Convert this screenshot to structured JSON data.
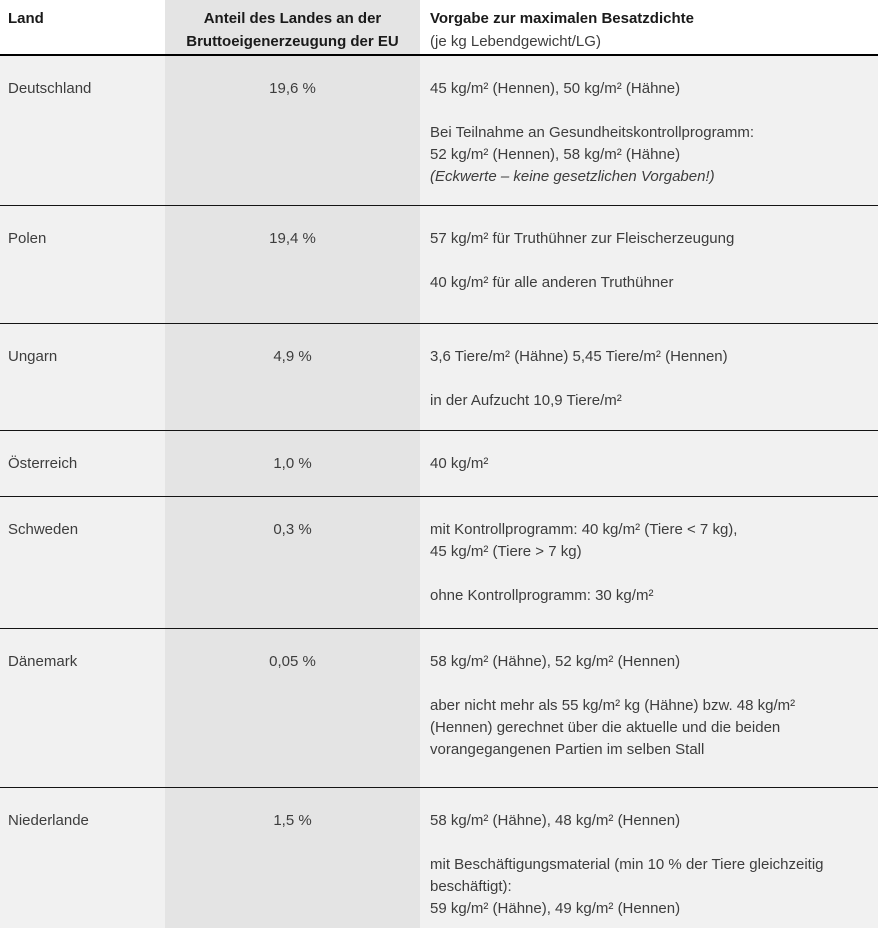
{
  "header": {
    "col1": "Land",
    "col2_line1": "Anteil des Landes an der",
    "col2_line2": "Bruttoeigenerzeugung der EU",
    "col3_title": "Vorgabe zur maximalen Besatzdichte",
    "col3_sub": "(je kg Lebendgewicht/LG)"
  },
  "rows": [
    {
      "country": "Deutschland",
      "share": "19,6 %",
      "lines": [
        "45 kg/m² (Hennen), 50 kg/m² (Hähne)",
        "",
        "Bei Teilnahme an Gesundheitskontrollprogramm:",
        "52 kg/m² (Hennen), 58 kg/m² (Hähne)",
        "(Eckwerte – keine gesetzlichen Vorgaben!)"
      ],
      "italic_lines": [
        4
      ]
    },
    {
      "country": "Polen",
      "share": "19,4 %",
      "lines": [
        "57 kg/m² für Truthühner zur Fleischerzeugung",
        "",
        "40 kg/m² für alle anderen Truthühner"
      ]
    },
    {
      "country": "Ungarn",
      "share": "4,9 %",
      "lines": [
        "3,6 Tiere/m² (Hähne) 5,45 Tiere/m² (Hennen)",
        "",
        "in der Aufzucht 10,9 Tiere/m²"
      ]
    },
    {
      "country": "Österreich",
      "share": "1,0 %",
      "lines": [
        "40 kg/m²"
      ]
    },
    {
      "country": "Schweden",
      "share": "0,3 %",
      "lines": [
        "mit Kontrollprogramm: 40 kg/m² (Tiere < 7 kg),",
        "45 kg/m² (Tiere > 7 kg)",
        "",
        "ohne Kontrollprogramm: 30 kg/m²"
      ]
    },
    {
      "country": "Dänemark",
      "share": "0,05 %",
      "lines": [
        "58 kg/m² (Hähne), 52 kg/m² (Hennen)",
        "",
        "aber nicht mehr als 55 kg/m² kg (Hähne) bzw. 48 kg/m²",
        "(Hennen) gerechnet über die aktuelle und die beiden",
        "vorangegangenen Partien im selben Stall"
      ]
    },
    {
      "country": "Niederlande",
      "share": "1,5 %",
      "lines": [
        "58 kg/m² (Hähne), 48 kg/m² (Hennen)",
        "",
        "mit Beschäftigungsmaterial (min 10 % der Tiere gleichzeitig",
        "beschäftigt):",
        "59 kg/m² (Hähne), 49 kg/m² (Hennen)"
      ]
    }
  ],
  "colors": {
    "row_background": "#f1f1f1",
    "share_column_background": "#e4e4e4",
    "separator": "#000000",
    "body_text": "#3d3d3d",
    "header_text": "#1a1a1a"
  }
}
